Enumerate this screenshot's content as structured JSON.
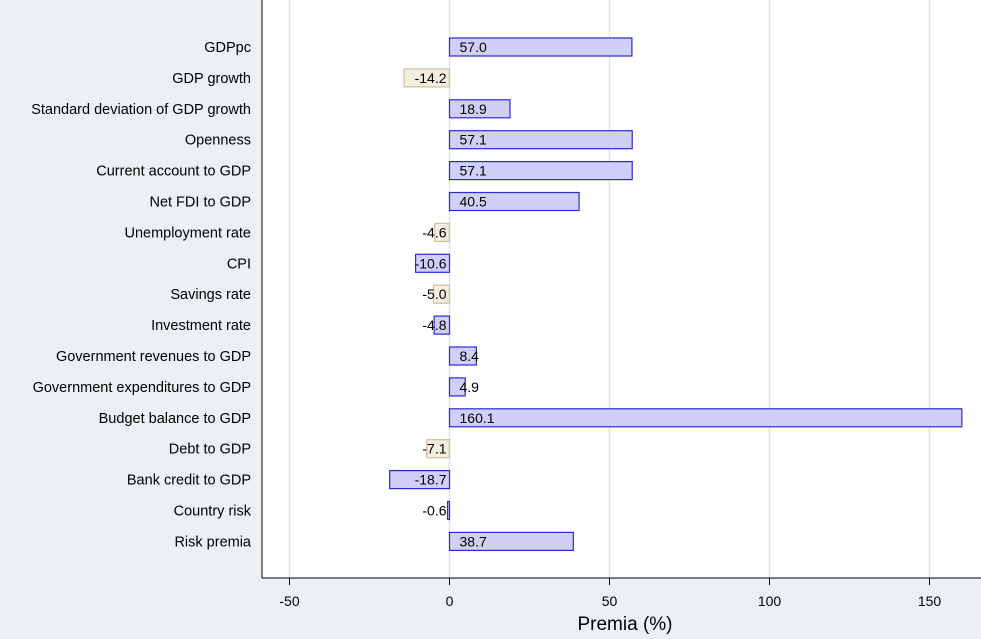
{
  "colors": {
    "background": "#ebf0f3",
    "plot_background": "#ffffff",
    "grid": "#dde6ea",
    "positive_fill": "#cfcff7",
    "positive_stroke": "#2b2bd0",
    "negative_fill": "#f3efdf",
    "negative_stroke": "#ccc0a0"
  },
  "chart_data": {
    "type": "bar",
    "orientation": "horizontal",
    "title": "",
    "xlabel": "Premia (%)",
    "ylabel": "",
    "xlim": [
      -55,
      160
    ],
    "xticks": [
      -50,
      0,
      50,
      100,
      150
    ],
    "grid": true,
    "categories": [
      "GDPpc",
      "GDP growth",
      "Standard deviation of GDP growth",
      "Openness",
      "Current account to GDP",
      "Net FDI to GDP",
      "Unemployment rate",
      "CPI",
      "Savings rate",
      "Investment rate",
      "Government revenues to GDP",
      "Government expenditures to GDP",
      "Budget balance to GDP",
      "Debt to GDP",
      "Bank credit to GDP",
      "Country risk",
      "Risk premia"
    ],
    "values": [
      57.0,
      -14.2,
      18.9,
      57.1,
      57.1,
      40.5,
      -4.6,
      -10.6,
      -5.0,
      -4.8,
      8.4,
      4.9,
      160.1,
      -7.1,
      -18.7,
      -0.6,
      38.7
    ],
    "value_labels": [
      "57.0",
      "-14.2",
      "18.9",
      "57.1",
      "57.1",
      "40.5",
      "-4.6",
      "-10.6",
      "-5.0",
      "-4.8",
      "8.4",
      "4.9",
      "160.1",
      "-7.1",
      "-18.7",
      "-0.6",
      "38.7"
    ],
    "bar_style": [
      "blue",
      "beige",
      "blue",
      "blue",
      "blue",
      "blue",
      "beige",
      "blue",
      "beige",
      "blue",
      "blue",
      "blue",
      "blue",
      "beige",
      "blue",
      "blue",
      "blue"
    ]
  }
}
